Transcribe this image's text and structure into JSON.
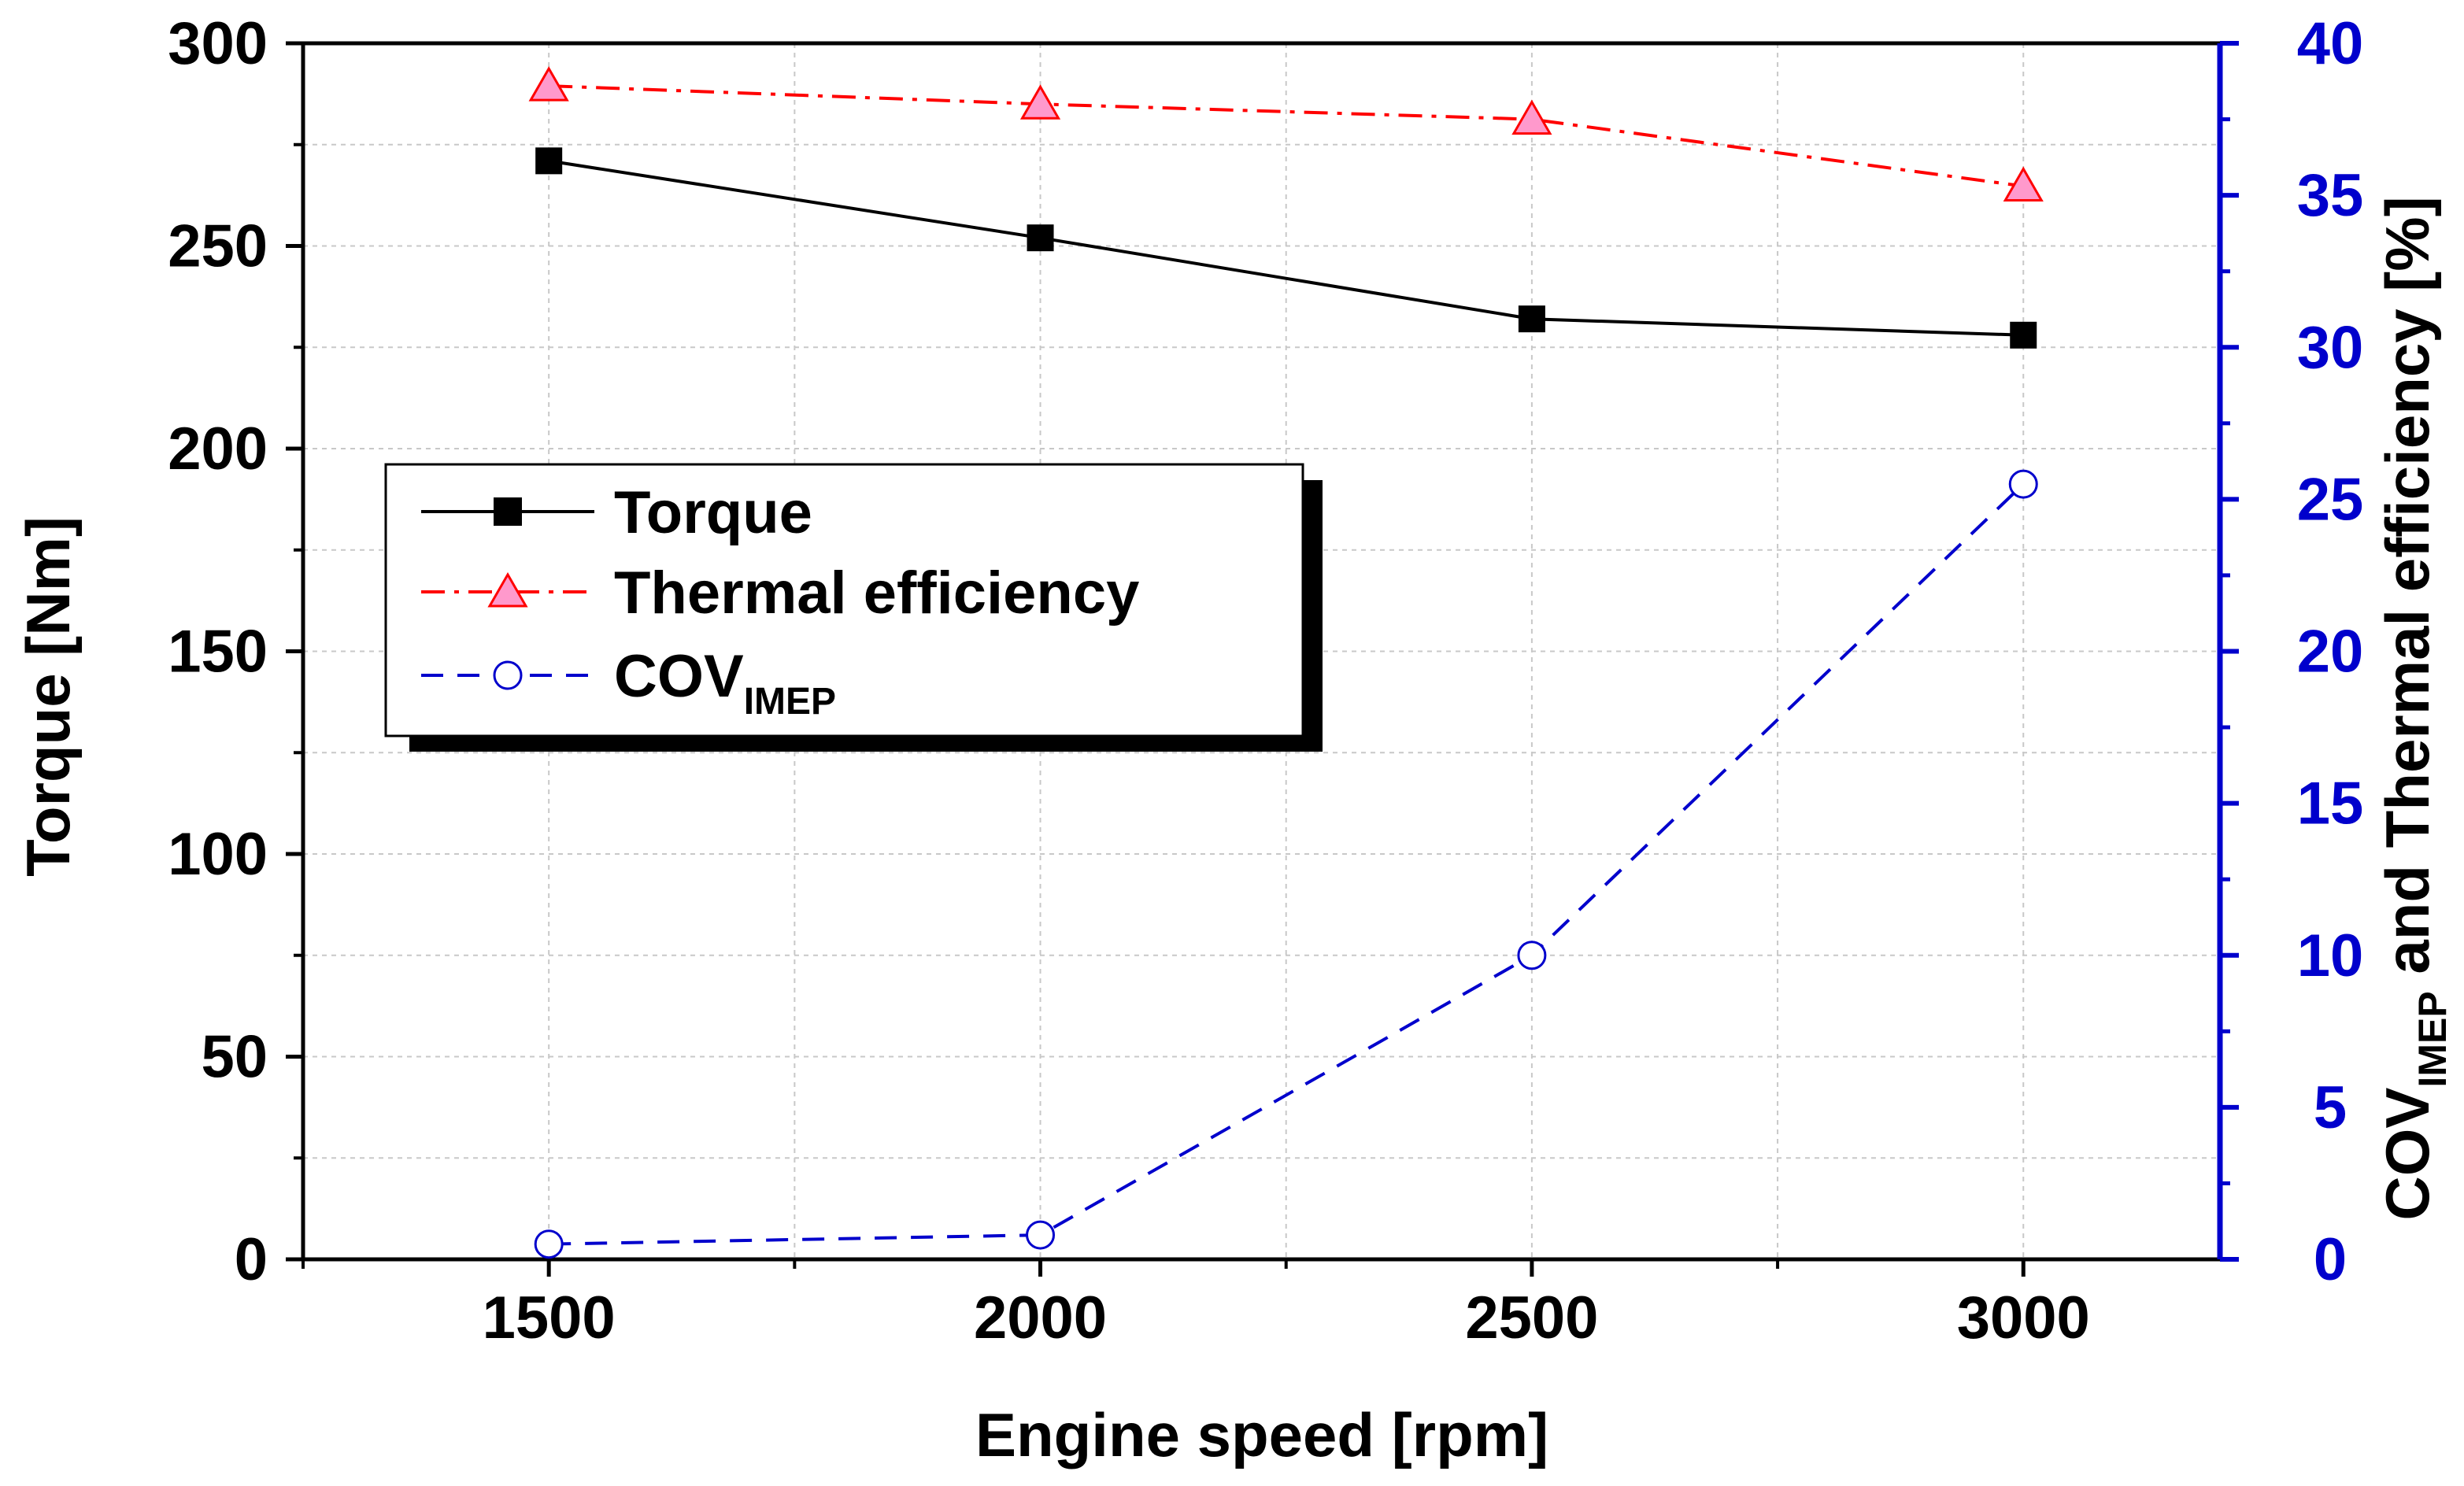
{
  "chart_data": {
    "type": "line",
    "x": [
      1500,
      2000,
      2500,
      3000
    ],
    "xlabel": "Engine speed [rpm]",
    "xlim": [
      1250,
      3200
    ],
    "xticks": [
      1500,
      2000,
      2500,
      3000
    ],
    "xminor_ticks": [
      1250,
      1750,
      2250,
      2750
    ],
    "y_left": {
      "label": "Torque [Nm]",
      "lim": [
        0,
        300
      ],
      "ticks": [
        0,
        50,
        100,
        150,
        200,
        250,
        300
      ],
      "color": "#000000"
    },
    "y_right": {
      "label_main": "COV",
      "label_sub": "IMEP",
      "label_rest": " and Thermal efficiency [%]",
      "lim": [
        0,
        40
      ],
      "ticks": [
        0,
        5,
        10,
        15,
        20,
        25,
        30,
        35,
        40
      ],
      "color": "#0000cc"
    },
    "grid": true,
    "series": [
      {
        "name": "Torque",
        "axis": "left",
        "values": [
          271,
          252,
          232,
          228
        ],
        "color": "#000000",
        "marker": "filled-square",
        "line_style": "solid"
      },
      {
        "name": "Thermal efficiency",
        "axis": "right",
        "values": [
          38.6,
          38.0,
          37.5,
          35.3
        ],
        "color": "#ff0000",
        "marker_fill": "#ff99cc",
        "marker": "triangle",
        "line_style": "dash-dot"
      },
      {
        "name": "COV",
        "name_sub": "IMEP",
        "axis": "right",
        "values": [
          0.5,
          0.8,
          10.0,
          25.5
        ],
        "color": "#0000cc",
        "marker": "open-circle",
        "line_style": "dashed"
      }
    ],
    "legend": {
      "placement": "upper-left"
    }
  }
}
